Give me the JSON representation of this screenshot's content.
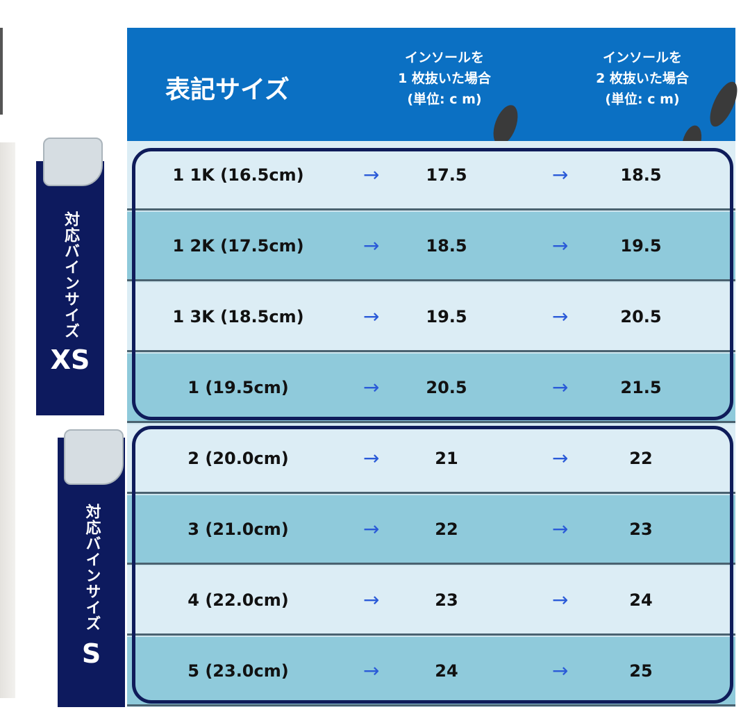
{
  "header": {
    "title": "表記サイズ",
    "col1": [
      "インソールを",
      "1 枚抜いた場合",
      "(単位: c m)"
    ],
    "col2": [
      "インソールを",
      "2 枚抜いた場合",
      "(単位: c m)"
    ]
  },
  "arrow": "→",
  "groups": [
    {
      "label": "対応バインサイズ",
      "size": "XS",
      "icon": "binding-icon"
    },
    {
      "label": "対応バインサイズ",
      "size": "S",
      "icon": "binding-icon"
    }
  ],
  "rows": [
    {
      "size": "1 1K (16.5cm)",
      "one": "17.5",
      "two": "18.5"
    },
    {
      "size": "1 2K (17.5cm)",
      "one": "18.5",
      "two": "19.5"
    },
    {
      "size": "1 3K (18.5cm)",
      "one": "19.5",
      "two": "20.5"
    },
    {
      "size": "1 (19.5cm)",
      "one": "20.5",
      "two": "21.5"
    },
    {
      "size": "2 (20.0cm)",
      "one": "21",
      "two": "22"
    },
    {
      "size": "3 (21.0cm)",
      "one": "22",
      "two": "23"
    },
    {
      "size": "4 (22.0cm)",
      "one": "23",
      "two": "24"
    },
    {
      "size": "5 (23.0cm)",
      "one": "24",
      "two": "25"
    }
  ],
  "colors": {
    "header": "#0b70c3",
    "row_light": "#dcedf5",
    "row_dark": "#8fcadb",
    "navy": "#0f1c5a",
    "arrow": "#2a5ad8"
  }
}
